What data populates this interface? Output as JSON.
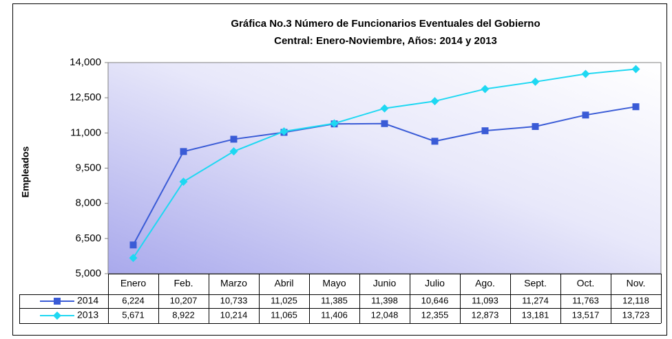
{
  "chart_data": {
    "type": "line",
    "title": [
      "Gráfica No.3 Número de Funcionarios Eventuales del Gobierno",
      "Central: Enero-Noviembre, Años: 2014 y 2013"
    ],
    "ylabel": "Empleados",
    "categories": [
      "Enero",
      "Feb.",
      "Marzo",
      "Abril",
      "Mayo",
      "Junio",
      "Julio",
      "Ago.",
      "Sept.",
      "Oct.",
      "Nov."
    ],
    "series": [
      {
        "name": "2014",
        "color": "#3a5bd6",
        "marker": "square",
        "values": [
          6224,
          10207,
          10733,
          11025,
          11385,
          11398,
          10646,
          11093,
          11274,
          11763,
          12118
        ],
        "value_labels": [
          "6,224",
          "10,207",
          "10,733",
          "11,025",
          "11,385",
          "11,398",
          "10,646",
          "11,093",
          "11,274",
          "11,763",
          "12,118"
        ]
      },
      {
        "name": "2013",
        "color": "#1ed8f2",
        "marker": "diamond",
        "values": [
          5671,
          8922,
          10214,
          11065,
          11406,
          12048,
          12355,
          12873,
          13181,
          13517,
          13723
        ],
        "value_labels": [
          "5,671",
          "8,922",
          "10,214",
          "11,065",
          "11,406",
          "12,048",
          "12,355",
          "12,873",
          "13,181",
          "13,517",
          "13,723"
        ]
      }
    ],
    "ylim": [
      5000,
      14000
    ],
    "yticks": [
      {
        "value": 5000,
        "label": "5,000"
      },
      {
        "value": 6500,
        "label": "6,500"
      },
      {
        "value": 8000,
        "label": "8,000"
      },
      {
        "value": 9500,
        "label": "9,500"
      },
      {
        "value": 11000,
        "label": "11,000"
      },
      {
        "value": 12500,
        "label": "12,500"
      },
      {
        "value": 14000,
        "label": "14,000"
      }
    ],
    "grid": false
  }
}
